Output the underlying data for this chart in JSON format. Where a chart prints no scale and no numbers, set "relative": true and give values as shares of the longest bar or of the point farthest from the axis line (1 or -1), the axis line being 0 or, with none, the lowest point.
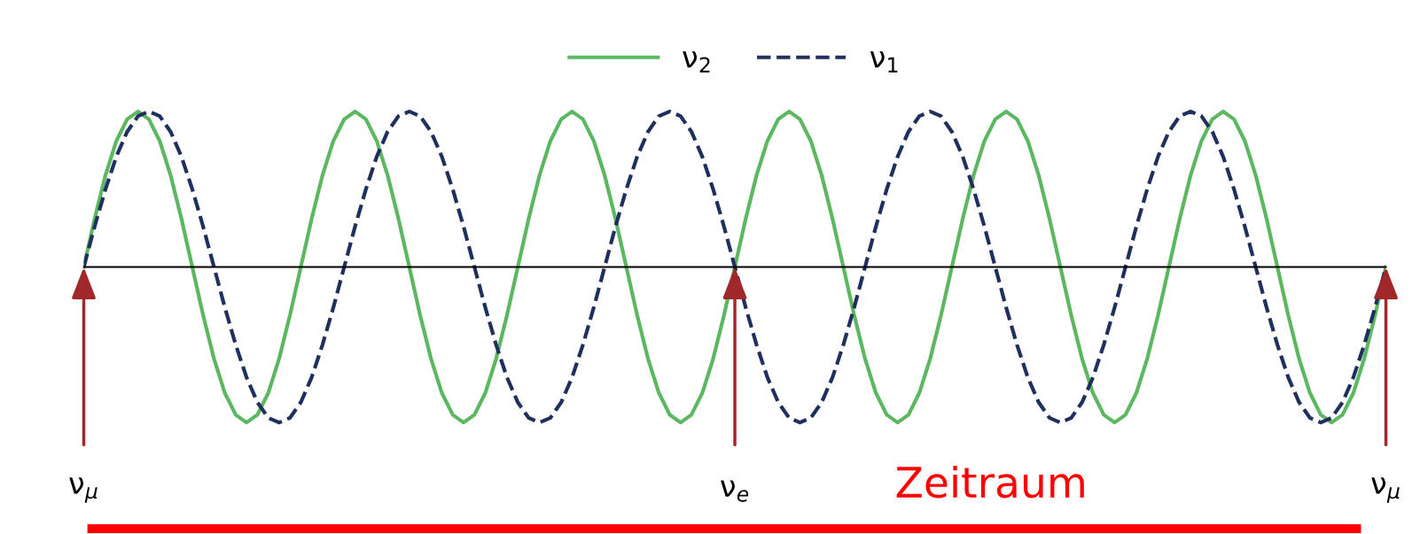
{
  "chart_data": {
    "type": "line",
    "relative": true,
    "legend": "top",
    "marker": "none",
    "categories": [
      null,
      null,
      null,
      null,
      null,
      null,
      null,
      null,
      null,
      null,
      null,
      null,
      null,
      null,
      null,
      null,
      null,
      null,
      null,
      null,
      null,
      null,
      null,
      null,
      null,
      null,
      null,
      null,
      null,
      null,
      null,
      null,
      null,
      null,
      null,
      null,
      null,
      null,
      null,
      null,
      null,
      null,
      null,
      null,
      null,
      null,
      null,
      null,
      null,
      null,
      null,
      null,
      null,
      null,
      null,
      null,
      null,
      null,
      null,
      null,
      null,
      null,
      null,
      null,
      null,
      null,
      null,
      null,
      null,
      null,
      null,
      null,
      null,
      null,
      null,
      null,
      null,
      null,
      null,
      null,
      null,
      null,
      null,
      null,
      null,
      null,
      null,
      null,
      null,
      null,
      null,
      null,
      null,
      null,
      null,
      null,
      null,
      null,
      null,
      null,
      null,
      null,
      null,
      null,
      null,
      null,
      null,
      null,
      null,
      null,
      null,
      null,
      null,
      null,
      null,
      null,
      null,
      null,
      null,
      null,
      null
    ],
    "series": [
      {
        "name": "ν$_{2}$",
        "color": "#5cb860",
        "line_style": "solid",
        "values": [
          0,
          0.31,
          0.59,
          0.81,
          0.95,
          1,
          0.95,
          0.81,
          0.59,
          0.31,
          0,
          -0.31,
          -0.59,
          -0.81,
          -0.95,
          -1,
          -0.95,
          -0.81,
          -0.59,
          -0.31,
          0,
          0.31,
          0.59,
          0.81,
          0.95,
          1,
          0.95,
          0.81,
          0.59,
          0.31,
          0,
          -0.31,
          -0.59,
          -0.81,
          -0.95,
          -1,
          -0.95,
          -0.81,
          -0.59,
          -0.31,
          0,
          0.31,
          0.59,
          0.81,
          0.95,
          1,
          0.95,
          0.81,
          0.59,
          0.31,
          0,
          -0.31,
          -0.59,
          -0.81,
          -0.95,
          -1,
          -0.95,
          -0.81,
          -0.59,
          -0.31,
          0,
          0.31,
          0.59,
          0.81,
          0.95,
          1,
          0.95,
          0.81,
          0.59,
          0.31,
          0,
          -0.31,
          -0.59,
          -0.81,
          -0.95,
          -1,
          -0.95,
          -0.81,
          -0.59,
          -0.31,
          0,
          0.31,
          0.59,
          0.81,
          0.95,
          1,
          0.95,
          0.81,
          0.59,
          0.31,
          0,
          -0.31,
          -0.59,
          -0.81,
          -0.95,
          -1,
          -0.95,
          -0.81,
          -0.59,
          -0.31,
          0,
          0.31,
          0.59,
          0.81,
          0.95,
          1,
          0.95,
          0.81,
          0.59,
          0.31,
          0,
          -0.31,
          -0.59,
          -0.81,
          -0.95,
          -1,
          -0.95,
          -0.81,
          -0.59,
          -0.31,
          0
        ]
      },
      {
        "name": "ν$_{1}$",
        "color": "#1f2f5e",
        "line_style": "dashed",
        "values": [
          0,
          0.26,
          0.5,
          0.71,
          0.87,
          0.97,
          1,
          0.97,
          0.87,
          0.71,
          0.5,
          0.26,
          0,
          -0.26,
          -0.5,
          -0.71,
          -0.87,
          -0.97,
          -1,
          -0.97,
          -0.87,
          -0.71,
          -0.5,
          -0.26,
          0,
          0.26,
          0.5,
          0.71,
          0.87,
          0.97,
          1,
          0.97,
          0.87,
          0.71,
          0.5,
          0.26,
          0,
          -0.26,
          -0.5,
          -0.71,
          -0.87,
          -0.97,
          -1,
          -0.97,
          -0.87,
          -0.71,
          -0.5,
          -0.26,
          0,
          0.26,
          0.5,
          0.71,
          0.87,
          0.97,
          1,
          0.97,
          0.87,
          0.71,
          0.5,
          0.26,
          0,
          -0.26,
          -0.5,
          -0.71,
          -0.87,
          -0.97,
          -1,
          -0.97,
          -0.87,
          -0.71,
          -0.5,
          -0.26,
          0,
          0.26,
          0.5,
          0.71,
          0.87,
          0.97,
          1,
          0.97,
          0.87,
          0.71,
          0.5,
          0.26,
          0,
          -0.26,
          -0.5,
          -0.71,
          -0.87,
          -0.97,
          -1,
          -0.97,
          -0.87,
          -0.71,
          -0.5,
          -0.26,
          0,
          0.26,
          0.5,
          0.71,
          0.87,
          0.97,
          1,
          0.97,
          0.87,
          0.71,
          0.5,
          0.26,
          0,
          -0.26,
          -0.5,
          -0.71,
          -0.87,
          -0.97,
          -1,
          -0.97,
          -0.87,
          -0.71,
          -0.5,
          -0.26,
          0
        ]
      }
    ],
    "annotations": [
      "ν$_{μ}$",
      "ν$_{e}$",
      "ν$_{μ}$",
      "Zeitraum"
    ]
  }
}
